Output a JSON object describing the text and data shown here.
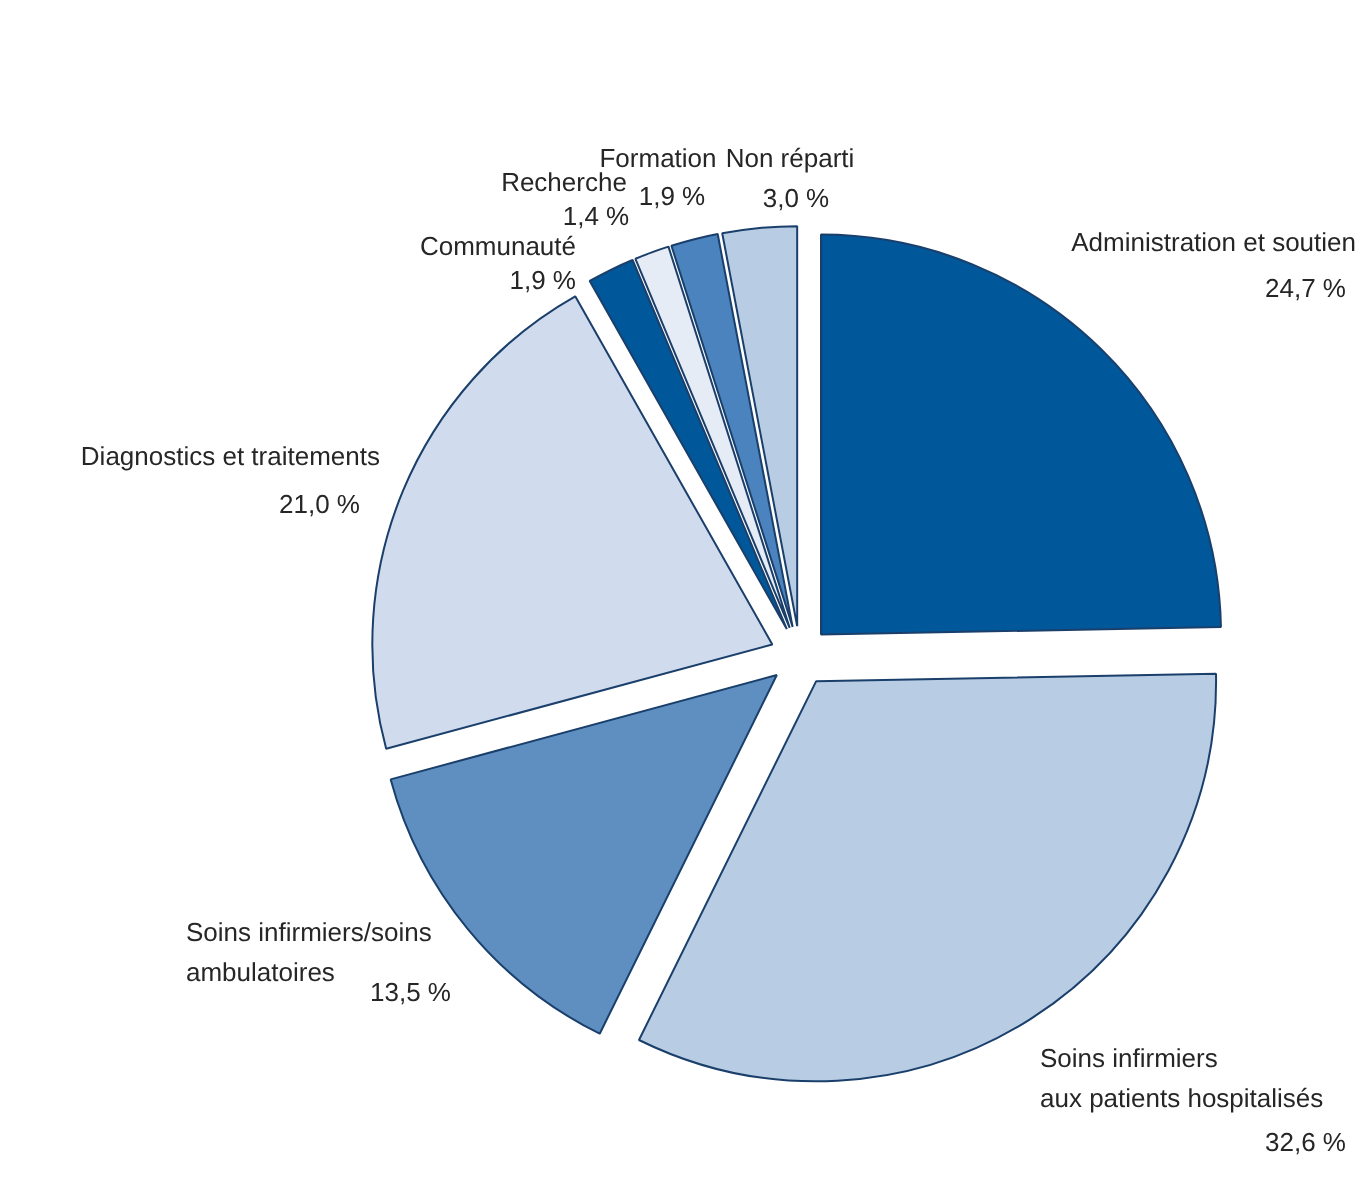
{
  "chart_data": {
    "type": "pie",
    "categories": [
      "Administration et soutien",
      "Soins infirmiers\naux patients hospitalisés",
      "Soins infirmiers/soins\nambulatoires",
      "Diagnostics et traitements",
      "Communauté",
      "Recherche",
      "Formation",
      "Non réparti"
    ],
    "values": [
      24.7,
      32.6,
      13.5,
      21.0,
      1.9,
      1.4,
      1.9,
      3.0
    ],
    "colors": [
      "#00579a",
      "#b8cce4",
      "#5f8fc1",
      "#d0dcee",
      "#00579a",
      "#e6ecf6",
      "#4a83bd",
      "#b8cce4"
    ],
    "value_labels": [
      "24,7 %",
      "32,6 %",
      "13,5 %",
      "21,0 %",
      "1,9 %",
      "1,4 %",
      "1,9 %",
      "3,0 %"
    ]
  }
}
